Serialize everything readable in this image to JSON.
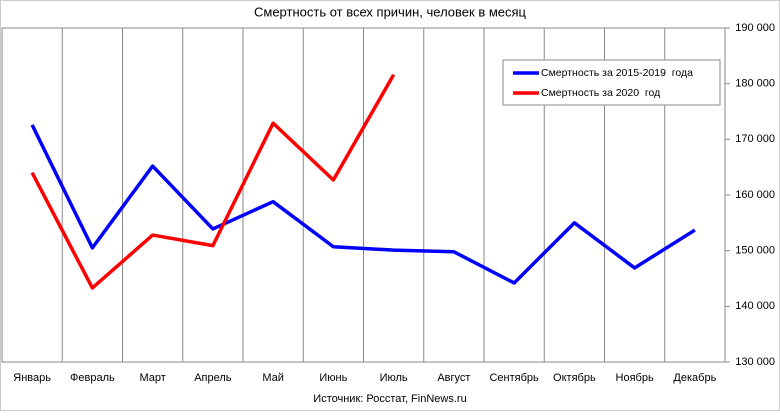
{
  "chart_data": {
    "type": "line",
    "title": "Смертность от всех причин, человек в месяц",
    "source": "Источник: Росстат, FinNews.ru",
    "categories": [
      "Январь",
      "Февраль",
      "Март",
      "Апрель",
      "Май",
      "Июнь",
      "Июль",
      "Август",
      "Сентябрь",
      "Октябрь",
      "Ноябрь",
      "Декабрь"
    ],
    "series": [
      {
        "name": "Смертность за 2015-2019  года",
        "color": "#0000ff",
        "values": [
          172600,
          150500,
          165200,
          153900,
          158800,
          150700,
          150100,
          149800,
          144200,
          155000,
          146900,
          153700
        ]
      },
      {
        "name": "Смертность за 2020  год",
        "color": "#ff0000",
        "values": [
          164000,
          143300,
          152800,
          150900,
          172900,
          162700,
          181600,
          null,
          null,
          null,
          null,
          null
        ]
      }
    ],
    "ylim": [
      130000,
      190000
    ],
    "yticks": [
      {
        "value": 130000,
        "label": "130 000"
      },
      {
        "value": 140000,
        "label": "140 000"
      },
      {
        "value": 150000,
        "label": "150 000"
      },
      {
        "value": 160000,
        "label": "160 000"
      },
      {
        "value": 170000,
        "label": "170 000"
      },
      {
        "value": 180000,
        "label": "180 000"
      },
      {
        "value": 190000,
        "label": "190 000"
      }
    ],
    "y_axis_side": "right",
    "legend_position": "upper right"
  }
}
